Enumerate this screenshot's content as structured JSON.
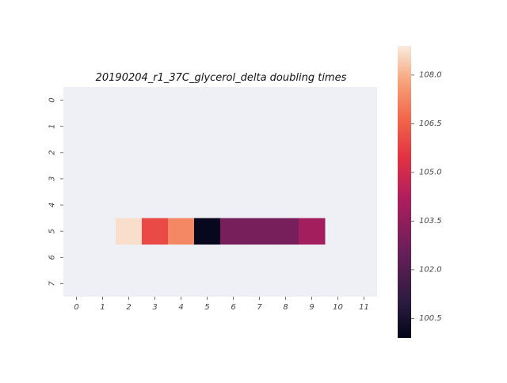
{
  "chart_data": {
    "type": "heatmap",
    "title": "20190204_r1_37C_glycerol_delta doubling times",
    "xlabel": "",
    "ylabel": "",
    "x_ticks": [
      "0",
      "1",
      "2",
      "3",
      "4",
      "5",
      "6",
      "7",
      "8",
      "9",
      "10",
      "11"
    ],
    "y_ticks": [
      "0",
      "1",
      "2",
      "3",
      "4",
      "5",
      "6",
      "7"
    ],
    "colorbar": {
      "ticks": [
        "100.5",
        "102.0",
        "103.5",
        "105.0",
        "106.5",
        "108.0"
      ],
      "range": [
        99.9,
        108.9
      ],
      "colormap": "rocket"
    },
    "background_color": "#eff0f5",
    "cells": [
      {
        "row": 5,
        "col": 2,
        "value": 108.7
      },
      {
        "row": 5,
        "col": 3,
        "value": 106.0
      },
      {
        "row": 5,
        "col": 4,
        "value": 107.3
      },
      {
        "row": 5,
        "col": 5,
        "value": 100.0
      },
      {
        "row": 5,
        "col": 6,
        "value": 102.9
      },
      {
        "row": 5,
        "col": 7,
        "value": 102.9
      },
      {
        "row": 5,
        "col": 8,
        "value": 102.9
      },
      {
        "row": 5,
        "col": 9,
        "value": 103.9
      }
    ]
  }
}
